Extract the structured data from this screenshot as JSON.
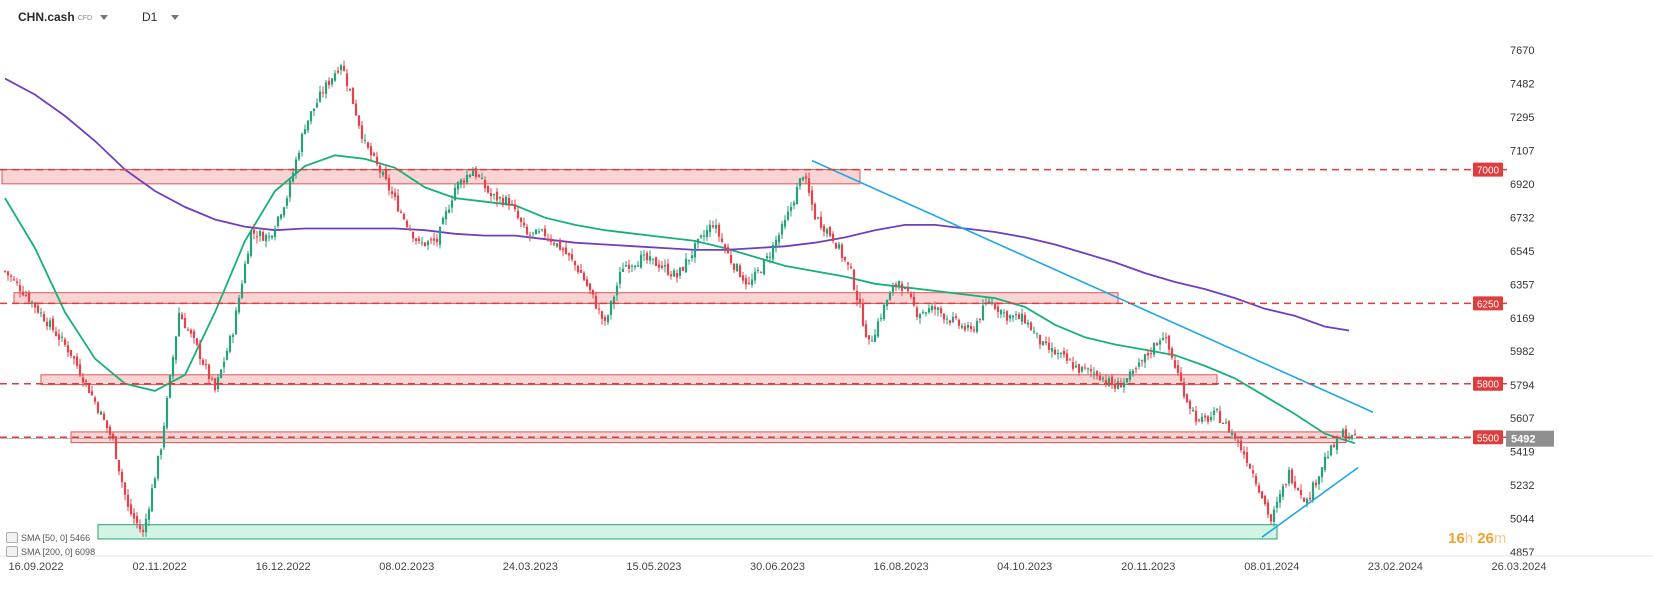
{
  "header": {
    "symbol": "CHN.cash",
    "instrument_type": "CFD",
    "timeframe": "D1"
  },
  "legend": [
    {
      "label": "SMA [50, 0]",
      "value": "5466"
    },
    {
      "label": "SMA [200, 0]",
      "value": "6098"
    }
  ],
  "timer": {
    "hours": "16",
    "hours_unit": "h",
    "minutes": "26",
    "minutes_unit": "m"
  },
  "colors": {
    "bull": "#26a17b",
    "bear": "#e5434c",
    "sma50": "#16b07a",
    "sma200": "#6f3fc0",
    "level": "#e03c3c",
    "zone_fill": "#f7c9c9",
    "zone_stroke": "#e05555",
    "green_zone_fill": "#c9f2df",
    "green_zone_stroke": "#29a36f",
    "trend": "#1ea7e6",
    "current_price": "#8f8f8f"
  },
  "chart_data": {
    "type": "candlestick",
    "x_axis_labels": [
      "16.09.2022",
      "02.11.2022",
      "16.12.2022",
      "08.02.2023",
      "24.03.2023",
      "15.05.2023",
      "30.06.2023",
      "16.08.2023",
      "04.10.2023",
      "20.11.2023",
      "08.01.2024",
      "23.02.2024",
      "26.03.2024"
    ],
    "y_axis_ticks": [
      7670,
      7482,
      7295,
      7107,
      6920,
      6732,
      6545,
      6357,
      6169,
      5982,
      5794,
      5607,
      5419,
      5232,
      5044,
      4857
    ],
    "ylim": [
      4857,
      7670
    ],
    "grid": false,
    "price_path": [
      [
        0,
        6430
      ],
      [
        7,
        6300
      ],
      [
        14,
        6150
      ],
      [
        22,
        5970
      ],
      [
        30,
        5700
      ],
      [
        36,
        5480
      ],
      [
        41,
        5100
      ],
      [
        46,
        4960
      ],
      [
        52,
        5450
      ],
      [
        58,
        6200
      ],
      [
        64,
        6000
      ],
      [
        70,
        5760
      ],
      [
        76,
        6100
      ],
      [
        82,
        6650
      ],
      [
        88,
        6620
      ],
      [
        94,
        6850
      ],
      [
        100,
        7250
      ],
      [
        106,
        7440
      ],
      [
        112,
        7600
      ],
      [
        116,
        7380
      ],
      [
        120,
        7140
      ],
      [
        126,
        6960
      ],
      [
        132,
        6760
      ],
      [
        138,
        6580
      ],
      [
        144,
        6600
      ],
      [
        150,
        6900
      ],
      [
        156,
        7000
      ],
      [
        162,
        6850
      ],
      [
        168,
        6820
      ],
      [
        174,
        6630
      ],
      [
        180,
        6640
      ],
      [
        186,
        6550
      ],
      [
        192,
        6420
      ],
      [
        196,
        6280
      ],
      [
        200,
        6130
      ],
      [
        206,
        6460
      ],
      [
        212,
        6500
      ],
      [
        218,
        6470
      ],
      [
        224,
        6400
      ],
      [
        230,
        6560
      ],
      [
        236,
        6700
      ],
      [
        242,
        6490
      ],
      [
        248,
        6350
      ],
      [
        254,
        6500
      ],
      [
        260,
        6700
      ],
      [
        266,
        6980
      ],
      [
        270,
        6740
      ],
      [
        276,
        6620
      ],
      [
        282,
        6420
      ],
      [
        288,
        6020
      ],
      [
        294,
        6270
      ],
      [
        298,
        6380
      ],
      [
        304,
        6200
      ],
      [
        310,
        6220
      ],
      [
        316,
        6150
      ],
      [
        322,
        6090
      ],
      [
        328,
        6270
      ],
      [
        334,
        6180
      ],
      [
        340,
        6160
      ],
      [
        346,
        6010
      ],
      [
        352,
        5950
      ],
      [
        358,
        5880
      ],
      [
        364,
        5860
      ],
      [
        370,
        5780
      ],
      [
        376,
        5850
      ],
      [
        382,
        5990
      ],
      [
        386,
        6080
      ],
      [
        390,
        5900
      ],
      [
        394,
        5710
      ],
      [
        398,
        5580
      ],
      [
        404,
        5630
      ],
      [
        410,
        5500
      ],
      [
        414,
        5380
      ],
      [
        418,
        5220
      ],
      [
        422,
        5030
      ],
      [
        428,
        5300
      ],
      [
        434,
        5140
      ],
      [
        440,
        5380
      ],
      [
        446,
        5520
      ],
      [
        450,
        5490
      ]
    ],
    "series": [
      {
        "name": "SMA [50, 0]",
        "last_value": 5466,
        "points": [
          [
            0,
            6840
          ],
          [
            10,
            6560
          ],
          [
            20,
            6200
          ],
          [
            30,
            5940
          ],
          [
            40,
            5800
          ],
          [
            50,
            5760
          ],
          [
            60,
            5850
          ],
          [
            70,
            6200
          ],
          [
            80,
            6600
          ],
          [
            90,
            6880
          ],
          [
            100,
            7020
          ],
          [
            110,
            7080
          ],
          [
            120,
            7060
          ],
          [
            130,
            7010
          ],
          [
            140,
            6900
          ],
          [
            150,
            6840
          ],
          [
            160,
            6820
          ],
          [
            170,
            6800
          ],
          [
            180,
            6730
          ],
          [
            190,
            6690
          ],
          [
            200,
            6660
          ],
          [
            210,
            6640
          ],
          [
            220,
            6620
          ],
          [
            230,
            6600
          ],
          [
            240,
            6560
          ],
          [
            250,
            6510
          ],
          [
            260,
            6460
          ],
          [
            270,
            6430
          ],
          [
            280,
            6400
          ],
          [
            290,
            6360
          ],
          [
            300,
            6340
          ],
          [
            310,
            6320
          ],
          [
            320,
            6300
          ],
          [
            330,
            6280
          ],
          [
            340,
            6230
          ],
          [
            350,
            6130
          ],
          [
            360,
            6060
          ],
          [
            370,
            6020
          ],
          [
            380,
            5990
          ],
          [
            390,
            5960
          ],
          [
            400,
            5900
          ],
          [
            410,
            5830
          ],
          [
            420,
            5730
          ],
          [
            430,
            5630
          ],
          [
            440,
            5520
          ],
          [
            450,
            5466
          ]
        ]
      },
      {
        "name": "SMA [200, 0]",
        "last_value": 6098,
        "points": [
          [
            0,
            7510
          ],
          [
            10,
            7420
          ],
          [
            20,
            7300
          ],
          [
            30,
            7160
          ],
          [
            40,
            7000
          ],
          [
            50,
            6880
          ],
          [
            60,
            6790
          ],
          [
            70,
            6720
          ],
          [
            80,
            6680
          ],
          [
            90,
            6660
          ],
          [
            100,
            6670
          ],
          [
            110,
            6670
          ],
          [
            120,
            6670
          ],
          [
            130,
            6670
          ],
          [
            140,
            6660
          ],
          [
            150,
            6640
          ],
          [
            160,
            6630
          ],
          [
            170,
            6630
          ],
          [
            180,
            6610
          ],
          [
            190,
            6590
          ],
          [
            200,
            6580
          ],
          [
            210,
            6570
          ],
          [
            220,
            6560
          ],
          [
            230,
            6550
          ],
          [
            240,
            6550
          ],
          [
            250,
            6560
          ],
          [
            260,
            6570
          ],
          [
            270,
            6590
          ],
          [
            280,
            6620
          ],
          [
            290,
            6660
          ],
          [
            300,
            6690
          ],
          [
            310,
            6690
          ],
          [
            320,
            6670
          ],
          [
            330,
            6650
          ],
          [
            340,
            6620
          ],
          [
            350,
            6580
          ],
          [
            360,
            6530
          ],
          [
            370,
            6480
          ],
          [
            380,
            6420
          ],
          [
            390,
            6370
          ],
          [
            400,
            6330
          ],
          [
            410,
            6280
          ],
          [
            420,
            6220
          ],
          [
            430,
            6180
          ],
          [
            440,
            6120
          ],
          [
            448,
            6098
          ]
        ]
      }
    ],
    "horizontal_levels": [
      {
        "label": "7000",
        "value": 7000
      },
      {
        "label": "6250",
        "value": 6250
      },
      {
        "label": "5800",
        "value": 5800
      },
      {
        "label": "5500",
        "value": 5500
      }
    ],
    "resistance_zones": [
      {
        "from": 6920,
        "to": 7000,
        "start": 0,
        "end": 286
      },
      {
        "from": 6250,
        "to": 6310,
        "start": 4,
        "end": 372
      },
      {
        "from": 5795,
        "to": 5850,
        "start": 13,
        "end": 405
      },
      {
        "from": 5470,
        "to": 5530,
        "start": 23,
        "end": 448
      }
    ],
    "support_zone": {
      "from": 4930,
      "to": 5010,
      "start": 32,
      "end": 425
    },
    "trendlines": [
      {
        "from": [
          269,
          7050
        ],
        "to": [
          456,
          5640
        ]
      },
      {
        "from": [
          419,
          4940
        ],
        "to": [
          451,
          5330
        ]
      }
    ],
    "current_price": {
      "label": "5492",
      "value": 5492
    }
  }
}
